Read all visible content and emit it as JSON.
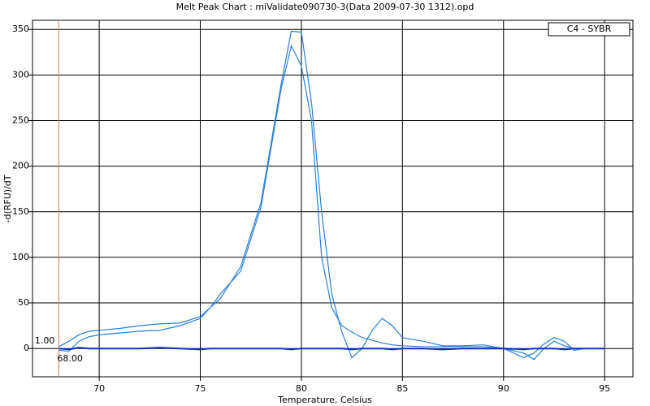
{
  "chart_data": {
    "type": "line",
    "title": "Melt Peak Chart : miValidate090730-3(Data 2009-07-30 1312).opd",
    "x_label": "Temperature, Celsius",
    "y_label": "-d(RFU)/dT",
    "legend": "C4 - SYBR",
    "grid": true,
    "xlim": [
      66.7,
      96.4
    ],
    "ylim": [
      -31,
      360
    ],
    "xticks": [
      70,
      75,
      80,
      85,
      90,
      95
    ],
    "yticks": [
      0,
      50,
      100,
      150,
      200,
      250,
      300,
      350
    ],
    "threshold_x": {
      "value": 68,
      "label": "68.00",
      "color": "#e07840"
    },
    "threshold_y": {
      "value": 1,
      "label": "1.00"
    },
    "x": [
      68,
      68.5,
      69,
      69.5,
      70,
      71,
      72,
      73,
      74,
      75,
      75.5,
      76,
      77,
      78,
      79,
      79.5,
      80,
      80.5,
      81,
      81.5,
      82,
      82.5,
      83,
      83.5,
      84,
      84.5,
      85,
      86,
      87,
      88,
      89,
      90,
      91,
      91.5,
      92,
      92.5,
      93,
      93.5,
      94,
      95
    ],
    "series": [
      {
        "color": "#2a7fd8",
        "values": [
          2,
          8,
          15,
          19,
          20,
          22,
          25,
          27,
          28,
          35,
          45,
          55,
          90,
          160,
          290,
          348,
          347,
          270,
          150,
          60,
          18,
          -10,
          0,
          20,
          33,
          25,
          12,
          8,
          3,
          3,
          4,
          0,
          -10,
          -5,
          5,
          12,
          8,
          -2,
          0,
          0
        ]
      },
      {
        "color": "#2a7fd8",
        "values": [
          -2,
          -3,
          8,
          13,
          15,
          17,
          19,
          20,
          25,
          33,
          45,
          60,
          85,
          155,
          285,
          332,
          310,
          250,
          100,
          45,
          25,
          18,
          12,
          9,
          6,
          4,
          3,
          2,
          2,
          2,
          2,
          0,
          -5,
          -12,
          0,
          8,
          3,
          0,
          0,
          0
        ]
      },
      {
        "color": "#1030c0",
        "values": [
          0,
          -1,
          1,
          0,
          0,
          0,
          0,
          1,
          0,
          -1,
          0,
          0,
          0,
          0,
          0,
          -1,
          0,
          0,
          0,
          0,
          0,
          -1,
          0,
          0,
          0,
          -1,
          0,
          0,
          -1,
          0,
          0,
          0,
          -1,
          0,
          0,
          0,
          -1,
          0,
          0,
          0
        ]
      }
    ]
  }
}
